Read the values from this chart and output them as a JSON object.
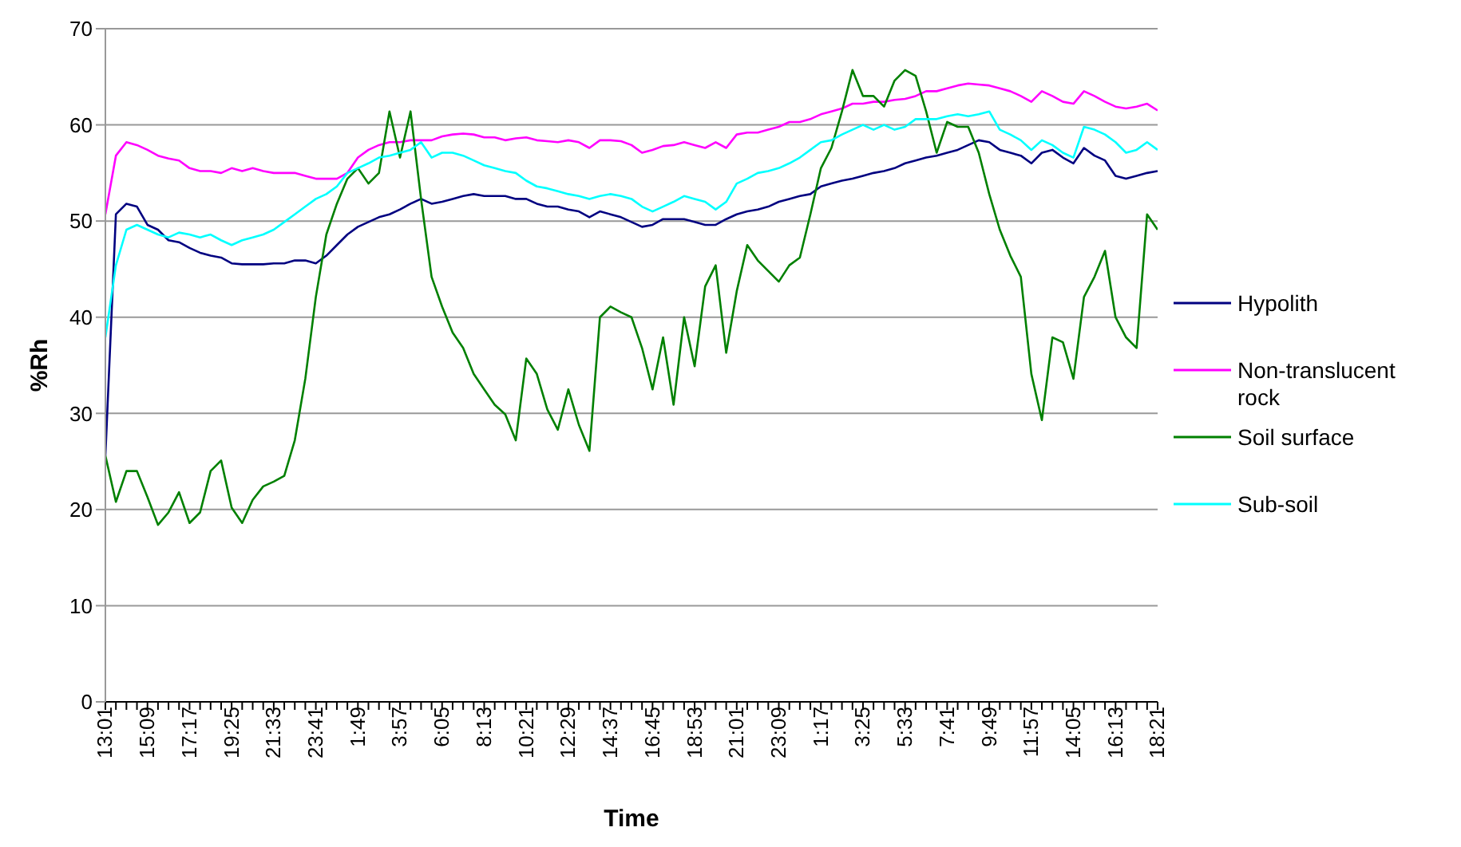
{
  "chart_data": {
    "type": "line",
    "xlabel": "Time",
    "ylabel": "%Rh",
    "ylim": [
      0,
      70
    ],
    "yticks": [
      0,
      10,
      20,
      30,
      40,
      50,
      60,
      70
    ],
    "grid": "y",
    "legend": "right",
    "marker": "none",
    "line_style": "solid",
    "categories": [
      "13:01",
      null,
      null,
      null,
      "15:09",
      null,
      null,
      null,
      "17:17",
      null,
      null,
      null,
      "19:25",
      null,
      null,
      null,
      "21:33",
      null,
      null,
      null,
      "23:41",
      null,
      null,
      null,
      "1:49",
      null,
      null,
      null,
      "3:57",
      null,
      null,
      null,
      "6:05",
      null,
      null,
      null,
      "8:13",
      null,
      null,
      null,
      "10:21",
      null,
      null,
      null,
      "12:29",
      null,
      null,
      null,
      "14:37",
      null,
      null,
      null,
      "16:45",
      null,
      null,
      null,
      "18:53",
      null,
      null,
      null,
      "21:01",
      null,
      null,
      null,
      "23:09",
      null,
      null,
      null,
      "1:17",
      null,
      null,
      null,
      "3:25",
      null,
      null,
      null,
      "5:33",
      null,
      null,
      null,
      "7:41",
      null,
      null,
      null,
      "9:49",
      null,
      null,
      null,
      "11:57",
      null,
      null,
      null,
      "14:05",
      null,
      null,
      null,
      "16:13",
      null,
      null,
      null,
      "18:21"
    ],
    "series": [
      {
        "name": "Hypolith",
        "color": "#000080",
        "values": [
          25.6,
          50.7,
          51.8,
          51.5,
          49.6,
          49.1,
          48.0,
          47.8,
          47.2,
          46.7,
          46.4,
          46.2,
          45.6,
          45.5,
          45.5,
          45.5,
          45.6,
          45.6,
          45.9,
          45.9,
          45.6,
          46.4,
          47.5,
          48.6,
          49.4,
          49.9,
          50.4,
          50.7,
          51.2,
          51.8,
          52.3,
          51.8,
          52.0,
          52.3,
          52.6,
          52.8,
          52.6,
          52.6,
          52.6,
          52.3,
          52.3,
          51.8,
          51.5,
          51.5,
          51.2,
          51.0,
          50.4,
          51.0,
          50.7,
          50.4,
          49.9,
          49.4,
          49.6,
          50.2,
          50.2,
          50.2,
          49.9,
          49.6,
          49.6,
          50.2,
          50.7,
          51.0,
          51.2,
          51.5,
          52.0,
          52.3,
          52.6,
          52.8,
          53.6,
          53.9,
          54.2,
          54.4,
          54.7,
          55.0,
          55.2,
          55.5,
          56.0,
          56.3,
          56.6,
          56.8,
          57.1,
          57.4,
          57.9,
          58.4,
          58.2,
          57.4,
          57.1,
          56.8,
          56.0,
          57.1,
          57.4,
          56.6,
          56.0,
          57.6,
          56.8,
          56.3,
          54.7,
          54.4,
          54.7,
          55.0,
          55.2
        ]
      },
      {
        "name": "Non-translucent rock",
        "color": "#ff00ff",
        "values": [
          50.7,
          56.8,
          58.2,
          57.9,
          57.4,
          56.8,
          56.5,
          56.3,
          55.5,
          55.2,
          55.2,
          55.0,
          55.5,
          55.2,
          55.5,
          55.2,
          55.0,
          55.0,
          55.0,
          54.7,
          54.4,
          54.4,
          54.4,
          55.0,
          56.6,
          57.4,
          57.9,
          58.2,
          58.2,
          58.4,
          58.4,
          58.4,
          58.8,
          59.0,
          59.1,
          59.0,
          58.7,
          58.7,
          58.4,
          58.6,
          58.7,
          58.4,
          58.3,
          58.2,
          58.4,
          58.2,
          57.6,
          58.4,
          58.4,
          58.3,
          57.9,
          57.1,
          57.4,
          57.8,
          57.9,
          58.2,
          57.9,
          57.6,
          58.2,
          57.6,
          59.0,
          59.2,
          59.2,
          59.5,
          59.8,
          60.3,
          60.3,
          60.6,
          61.1,
          61.4,
          61.7,
          62.2,
          62.2,
          62.4,
          62.4,
          62.6,
          62.7,
          63.0,
          63.5,
          63.5,
          63.8,
          64.1,
          64.3,
          64.2,
          64.1,
          63.8,
          63.5,
          63.0,
          62.4,
          63.5,
          63.0,
          62.4,
          62.2,
          63.5,
          63.0,
          62.4,
          61.9,
          61.7,
          61.9,
          62.2,
          61.5
        ]
      },
      {
        "name": "Soil surface",
        "color": "#008000",
        "values": [
          25.6,
          20.8,
          24.0,
          24.0,
          21.3,
          18.4,
          19.7,
          21.8,
          18.6,
          19.7,
          24.0,
          25.1,
          20.2,
          18.6,
          21.0,
          22.4,
          22.9,
          23.5,
          27.2,
          33.6,
          42.1,
          48.6,
          51.8,
          54.4,
          55.5,
          53.9,
          55.0,
          61.4,
          56.6,
          61.4,
          52.3,
          44.2,
          41.1,
          38.4,
          36.8,
          34.1,
          32.5,
          30.9,
          29.9,
          27.2,
          35.7,
          34.1,
          30.4,
          28.3,
          32.5,
          28.8,
          26.1,
          40.0,
          41.1,
          40.5,
          40.0,
          36.8,
          32.5,
          37.9,
          30.9,
          40.0,
          34.9,
          43.2,
          45.4,
          36.3,
          42.7,
          47.5,
          45.9,
          44.8,
          43.7,
          45.4,
          46.2,
          50.7,
          55.5,
          57.6,
          61.4,
          65.7,
          63.0,
          63.0,
          61.9,
          64.6,
          65.7,
          65.1,
          61.4,
          57.1,
          60.3,
          59.8,
          59.8,
          57.1,
          52.8,
          49.1,
          46.4,
          44.2,
          34.1,
          29.3,
          37.9,
          37.4,
          33.6,
          42.1,
          44.2,
          46.9,
          40.0,
          37.9,
          36.8,
          50.7,
          49.1
        ]
      },
      {
        "name": "Sub-soil",
        "color": "#00ffff",
        "values": [
          37.9,
          45.4,
          49.1,
          49.6,
          49.1,
          48.6,
          48.3,
          48.8,
          48.6,
          48.3,
          48.6,
          48.0,
          47.5,
          48.0,
          48.3,
          48.6,
          49.1,
          49.9,
          50.7,
          51.5,
          52.3,
          52.8,
          53.6,
          55.0,
          55.5,
          56.0,
          56.6,
          56.8,
          57.1,
          57.4,
          58.2,
          56.6,
          57.1,
          57.1,
          56.8,
          56.3,
          55.8,
          55.5,
          55.2,
          55.0,
          54.2,
          53.6,
          53.4,
          53.1,
          52.8,
          52.6,
          52.3,
          52.6,
          52.8,
          52.6,
          52.3,
          51.5,
          51.0,
          51.5,
          52.0,
          52.6,
          52.3,
          52.0,
          51.2,
          52.0,
          53.9,
          54.4,
          55.0,
          55.2,
          55.5,
          56.0,
          56.6,
          57.4,
          58.2,
          58.4,
          59.0,
          59.5,
          60.0,
          59.5,
          60.0,
          59.5,
          59.8,
          60.6,
          60.6,
          60.6,
          60.9,
          61.1,
          60.9,
          61.1,
          61.4,
          59.5,
          59.0,
          58.4,
          57.4,
          58.4,
          57.9,
          57.1,
          56.6,
          59.8,
          59.5,
          59.0,
          58.2,
          57.1,
          57.4,
          58.2,
          57.4
        ]
      }
    ]
  }
}
